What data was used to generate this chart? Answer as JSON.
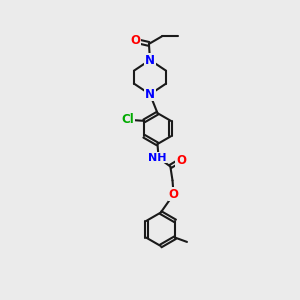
{
  "background_color": "#ebebeb",
  "bond_color": "#1a1a1a",
  "bond_width": 1.5,
  "atom_colors": {
    "O": "#ff0000",
    "N": "#0000ff",
    "Cl": "#00aa00",
    "C": "#1a1a1a"
  },
  "font_size_atom": 8.5,
  "font_size_small": 7.5
}
